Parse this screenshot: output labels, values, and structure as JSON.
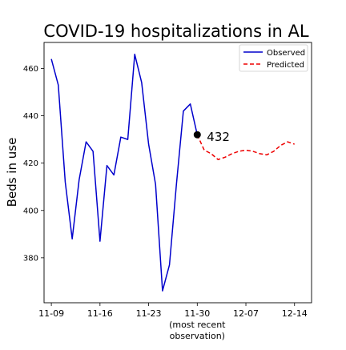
{
  "chart_data": {
    "type": "line",
    "title": "COVID-19 hospitalizations in AL",
    "xlabel": "",
    "ylabel": "Beds in use",
    "x_ticks": [
      "11-09",
      "11-16",
      "11-23",
      "11-30",
      "12-07",
      "12-14"
    ],
    "x_tick_sublabel": "(most recent\nobservation)",
    "xlim": [
      -0.15,
      5.35
    ],
    "ylim": [
      361,
      471
    ],
    "y_ticks": [
      380,
      400,
      420,
      440,
      460
    ],
    "grid": false,
    "legend_position": "top-right",
    "series": [
      {
        "name": "Observed",
        "color": "#0000cc",
        "style": "solid",
        "x": [
          0,
          0.1429,
          0.2857,
          0.4286,
          0.5714,
          0.7143,
          0.8571,
          1.0,
          1.1429,
          1.2857,
          1.4286,
          1.5714,
          1.7143,
          1.8571,
          2.0,
          2.1429,
          2.2857,
          2.4286,
          2.5714,
          2.7143,
          2.8571,
          3.0
        ],
        "values": [
          464,
          453,
          412,
          388,
          413,
          429,
          425,
          387,
          419,
          415,
          431,
          430,
          466,
          454,
          428,
          411,
          366,
          377,
          411,
          442,
          445,
          432
        ]
      },
      {
        "name": "Predicted",
        "color": "#ee0000",
        "style": "dashed",
        "x": [
          3.0,
          3.1429,
          3.2857,
          3.4286,
          3.5714,
          3.7143,
          3.8571,
          4.0,
          4.1429,
          4.2857,
          4.4286,
          4.5714,
          4.7143,
          4.8571,
          5.0
        ],
        "values": [
          432,
          425.5,
          424,
          421.5,
          422.5,
          424,
          425,
          425.5,
          425,
          424,
          423.5,
          425,
          427.5,
          429,
          428
        ]
      }
    ],
    "annotation": {
      "x": 3.0,
      "y": 432,
      "text": "432",
      "color": "#000000"
    }
  }
}
